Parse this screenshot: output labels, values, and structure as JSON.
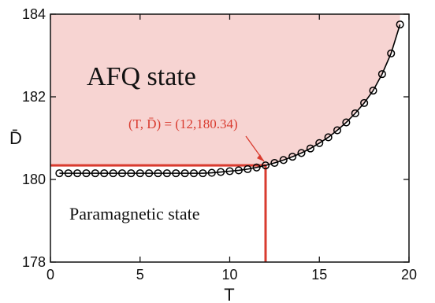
{
  "colors": {
    "region_fill": "#f7d4d2",
    "highlight": "#d93b2f",
    "data_line": "#000000",
    "marker_stroke": "#000000"
  },
  "labels": {
    "afq_region": "AFQ state",
    "para_region": "Paramagnetic state",
    "annotation": "(T, D̄) = (12,180.34)",
    "ylabel": "D̄",
    "xlabel": "T"
  },
  "chart_data": {
    "type": "line",
    "title": "",
    "xlabel": "T",
    "ylabel": "D̄",
    "xlim": [
      0,
      20
    ],
    "ylim": [
      178,
      184
    ],
    "x_ticks": [
      0,
      5,
      10,
      15,
      20
    ],
    "y_ticks": [
      178,
      180,
      182,
      184
    ],
    "grid": false,
    "legend": "none",
    "marker": "open-circle",
    "series": [
      {
        "x": [
          0.5,
          1.0,
          1.5,
          2.0,
          2.5,
          3.0,
          3.5,
          4.0,
          4.5,
          5.0,
          5.5,
          6.0,
          6.5,
          7.0,
          7.5,
          8.0,
          8.5,
          9.0,
          9.5,
          10.0,
          10.5,
          11.0,
          11.5,
          12.0,
          12.5,
          13.0,
          13.5,
          14.0,
          14.5,
          15.0,
          15.5,
          16.0,
          16.5,
          17.0,
          17.5,
          18.0,
          18.5,
          19.0,
          19.5
        ],
        "values": [
          180.15,
          180.15,
          180.15,
          180.15,
          180.15,
          180.15,
          180.15,
          180.15,
          180.15,
          180.15,
          180.15,
          180.15,
          180.15,
          180.15,
          180.15,
          180.15,
          180.15,
          180.16,
          180.18,
          180.2,
          180.22,
          180.25,
          180.29,
          180.34,
          180.4,
          180.47,
          180.55,
          180.64,
          180.75,
          180.88,
          181.02,
          181.19,
          181.38,
          181.6,
          181.85,
          182.15,
          182.55,
          183.05,
          183.75
        ]
      }
    ],
    "annotation": {
      "text": "(T, D̄) = (12,180.34)",
      "point": [
        12,
        180.34
      ]
    },
    "region_labels": [
      "AFQ state",
      "Paramagnetic state"
    ]
  }
}
